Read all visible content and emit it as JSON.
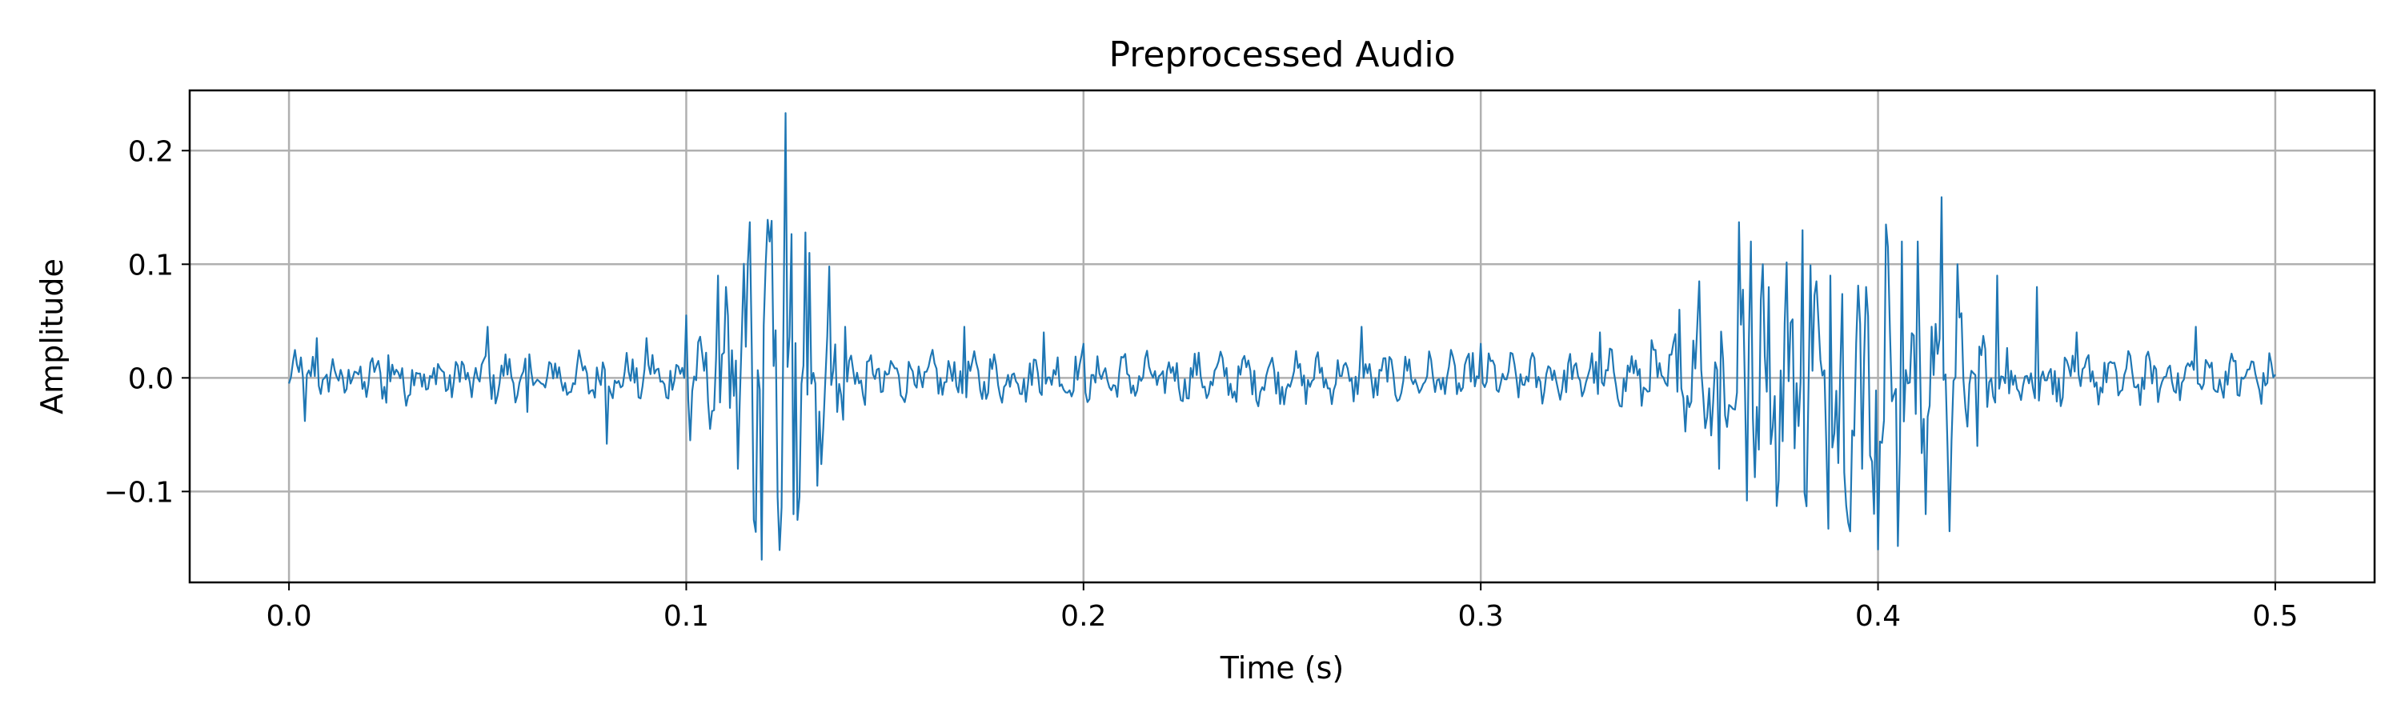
{
  "chart_data": {
    "type": "line",
    "title": "Preprocessed Audio",
    "xlabel": "Time (s)",
    "ylabel": "Amplitude",
    "xlim": [
      -0.025,
      0.525
    ],
    "ylim": [
      -0.18,
      0.253
    ],
    "x_ticks": [
      0.0,
      0.1,
      0.2,
      0.3,
      0.4,
      0.5
    ],
    "x_tick_labels": [
      "0.0",
      "0.1",
      "0.2",
      "0.3",
      "0.4",
      "0.5"
    ],
    "y_ticks": [
      -0.1,
      0.0,
      0.1,
      0.2
    ],
    "y_tick_labels": [
      "−0.1",
      "0.0",
      "0.1",
      "0.2"
    ],
    "grid": true,
    "line_color": "#1f77b4",
    "series": [
      {
        "x_start": 0.0,
        "x_end": 0.5,
        "sample_rate_hz": 2000,
        "sample_count": 1000,
        "anchors": [
          [
            0.0,
            -0.005
          ],
          [
            0.003,
            0.018
          ],
          [
            0.004,
            -0.038
          ],
          [
            0.007,
            0.035
          ],
          [
            0.025,
            0.02
          ],
          [
            0.05,
            0.045
          ],
          [
            0.06,
            -0.03
          ],
          [
            0.08,
            -0.058
          ],
          [
            0.09,
            0.035
          ],
          [
            0.1,
            0.055
          ],
          [
            0.101,
            -0.055
          ],
          [
            0.108,
            0.09
          ],
          [
            0.11,
            0.08
          ],
          [
            0.113,
            -0.08
          ],
          [
            0.116,
            0.137
          ],
          [
            0.117,
            -0.125
          ],
          [
            0.119,
            -0.16
          ],
          [
            0.12,
            0.1
          ],
          [
            0.121,
            0.12
          ],
          [
            0.123,
            -0.105
          ],
          [
            0.125,
            0.233
          ],
          [
            0.127,
            -0.12
          ],
          [
            0.128,
            -0.125
          ],
          [
            0.13,
            0.128
          ],
          [
            0.131,
            0.11
          ],
          [
            0.133,
            -0.095
          ],
          [
            0.136,
            0.098
          ],
          [
            0.138,
            -0.03
          ],
          [
            0.14,
            0.045
          ],
          [
            0.17,
            0.045
          ],
          [
            0.19,
            0.04
          ],
          [
            0.2,
            0.03
          ],
          [
            0.27,
            0.045
          ],
          [
            0.3,
            0.03
          ],
          [
            0.33,
            0.04
          ],
          [
            0.35,
            0.06
          ],
          [
            0.355,
            0.085
          ],
          [
            0.36,
            -0.08
          ],
          [
            0.365,
            0.137
          ],
          [
            0.367,
            -0.108
          ],
          [
            0.368,
            0.12
          ],
          [
            0.371,
            0.1
          ],
          [
            0.375,
            -0.09
          ],
          [
            0.381,
            0.13
          ],
          [
            0.382,
            -0.113
          ],
          [
            0.388,
            0.09
          ],
          [
            0.39,
            -0.075
          ],
          [
            0.396,
            -0.08
          ],
          [
            0.397,
            0.08
          ],
          [
            0.4,
            -0.151
          ],
          [
            0.402,
            0.135
          ],
          [
            0.405,
            -0.148
          ],
          [
            0.406,
            0.12
          ],
          [
            0.41,
            0.12
          ],
          [
            0.412,
            -0.12
          ],
          [
            0.416,
            0.159
          ],
          [
            0.418,
            -0.135
          ],
          [
            0.42,
            0.1
          ],
          [
            0.425,
            -0.06
          ],
          [
            0.43,
            0.09
          ],
          [
            0.44,
            0.08
          ],
          [
            0.45,
            0.04
          ],
          [
            0.48,
            0.045
          ],
          [
            0.49,
            0.015
          ],
          [
            0.5,
            0.003
          ]
        ]
      }
    ]
  }
}
